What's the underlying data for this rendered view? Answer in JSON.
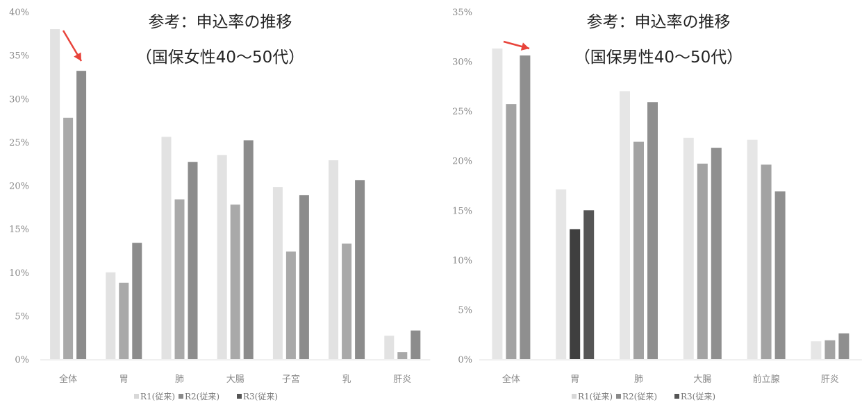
{
  "chart_data": [
    {
      "type": "bar",
      "title_lines": [
        "参考：申込率の推移",
        "（国保女性40～50代）"
      ],
      "categories": [
        "全体",
        "胃",
        "肺",
        "大腸",
        "子宮",
        "乳",
        "肝炎"
      ],
      "series": [
        {
          "name": "R1(従来)",
          "color": "#e2e2e2",
          "values": [
            38.0,
            10.0,
            25.6,
            23.5,
            19.8,
            22.9,
            2.7
          ]
        },
        {
          "name": "R2(従来)",
          "color": "#a9a9a9",
          "values": [
            27.8,
            8.8,
            18.4,
            17.8,
            12.4,
            13.3,
            0.8
          ]
        },
        {
          "name": "R3(従来)",
          "color": "#8c8c8c",
          "values": [
            33.2,
            13.4,
            22.7,
            25.2,
            18.9,
            20.6,
            3.3
          ]
        }
      ],
      "y_ticks": [
        "0%",
        "5%",
        "10%",
        "15%",
        "20%",
        "25%",
        "30%",
        "35%",
        "40%"
      ],
      "ylim": [
        0,
        40
      ],
      "legend_position": "bottom",
      "annotation": "red arrow pointing to 全体 R3 bar"
    },
    {
      "type": "bar",
      "title_lines": [
        "参考：申込率の推移",
        "（国保男性40～50代）"
      ],
      "categories": [
        "全体",
        "胃",
        "肺",
        "大腸",
        "前立腺",
        "肝炎"
      ],
      "series": [
        {
          "name": "R1(従来)",
          "color": "#e6e6e6",
          "values": [
            31.3,
            17.1,
            27.0,
            22.3,
            22.1,
            1.8
          ]
        },
        {
          "name": "R2(従来)",
          "color": "#a3a3a3",
          "values": [
            25.7,
            13.1,
            21.9,
            19.7,
            19.6,
            1.9
          ]
        },
        {
          "name": "R3(従来)",
          "color": "#8f8f8f",
          "values": [
            30.6,
            15.0,
            25.9,
            21.3,
            16.9,
            2.6
          ]
        }
      ],
      "y_ticks": [
        "0%",
        "5%",
        "10%",
        "15%",
        "20%",
        "25%",
        "30%",
        "35%"
      ],
      "ylim": [
        0,
        35
      ],
      "legend_position": "bottom",
      "annotation": "red arrow pointing to 全体 R3 bar",
      "special_colors": {
        "stomach_r2": "#3f3f3f",
        "stomach_r3": "#555555"
      }
    }
  ],
  "colors": {
    "arrow": "#e8433a"
  }
}
